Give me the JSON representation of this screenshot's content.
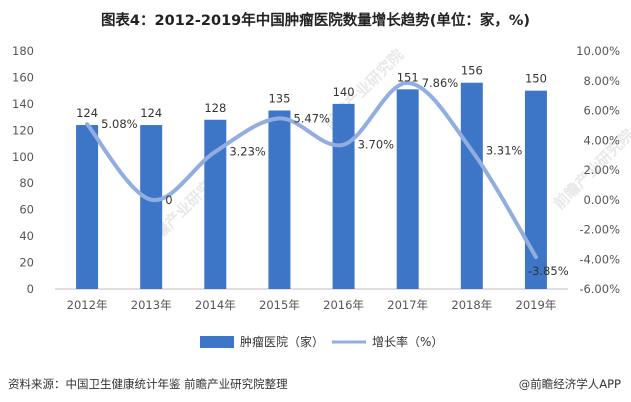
{
  "title": "图表4：2012-2019年中国肿瘤医院数量增长趋势(单位：家，%)",
  "source_text": "资料来源：中国卫生健康统计年鉴 前瞻产业研究院整理",
  "app_text": "@前瞻经济学人APP",
  "watermark": "前瞻产业研究院",
  "chart_data": {
    "type": "bar+line",
    "categories": [
      "2012年",
      "2013年",
      "2014年",
      "2015年",
      "2016年",
      "2017年",
      "2018年",
      "2019年"
    ],
    "series": [
      {
        "name": "肿瘤医院（家）",
        "type": "bar",
        "axis": "left",
        "color": "#3d76c6",
        "values": [
          124,
          124,
          128,
          135,
          140,
          151,
          156,
          150
        ],
        "labels": [
          "124",
          "124",
          "128",
          "135",
          "140",
          "151",
          "156",
          "150"
        ]
      },
      {
        "name": "增长率（%）",
        "type": "line",
        "axis": "right",
        "color": "#92aee0",
        "values": [
          5.08,
          0,
          3.23,
          5.47,
          3.7,
          7.86,
          3.31,
          -3.85
        ],
        "labels": [
          "5.08%",
          "0",
          "3.23%",
          "5.47%",
          "3.70%",
          "7.86%",
          "3.31%",
          "-3.85%"
        ]
      }
    ],
    "left_axis": {
      "min": 0,
      "max": 180,
      "step": 20,
      "ticks": [
        "0",
        "20",
        "40",
        "60",
        "80",
        "100",
        "120",
        "140",
        "160",
        "180"
      ]
    },
    "right_axis": {
      "min": -6,
      "max": 10,
      "step": 2,
      "ticks": [
        "-6.00%",
        "-4.00%",
        "-2.00%",
        "0.00%",
        "2.00%",
        "4.00%",
        "6.00%",
        "8.00%",
        "10.00%"
      ]
    },
    "legend_position": "bottom-center"
  }
}
